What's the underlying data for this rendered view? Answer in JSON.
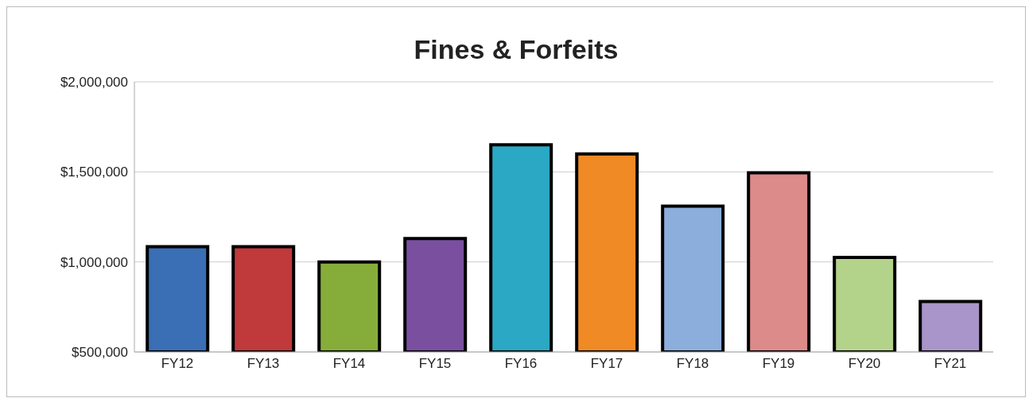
{
  "chart_data": {
    "type": "bar",
    "title": "Fines & Forfeits",
    "categories": [
      "FY12",
      "FY13",
      "FY14",
      "FY15",
      "FY16",
      "FY17",
      "FY18",
      "FY19",
      "FY20",
      "FY21"
    ],
    "values": [
      1085000,
      1085000,
      1000000,
      1130000,
      1650000,
      1600000,
      1310000,
      1495000,
      1025000,
      780000
    ],
    "colors": [
      "#3a6fb5",
      "#c0393b",
      "#86ad3a",
      "#7a4fa0",
      "#2aa8c4",
      "#f08a24",
      "#8caedc",
      "#dc8a8a",
      "#b4d38a",
      "#a995c9"
    ],
    "ylim": [
      500000,
      2000000
    ],
    "yticks": [
      {
        "value": 500000,
        "label": "$500,000"
      },
      {
        "value": 1000000,
        "label": "$1,000,000"
      },
      {
        "value": 1500000,
        "label": "$1,500,000"
      },
      {
        "value": 2000000,
        "label": "$2,000,000"
      }
    ],
    "grid": "y",
    "legend": false
  }
}
